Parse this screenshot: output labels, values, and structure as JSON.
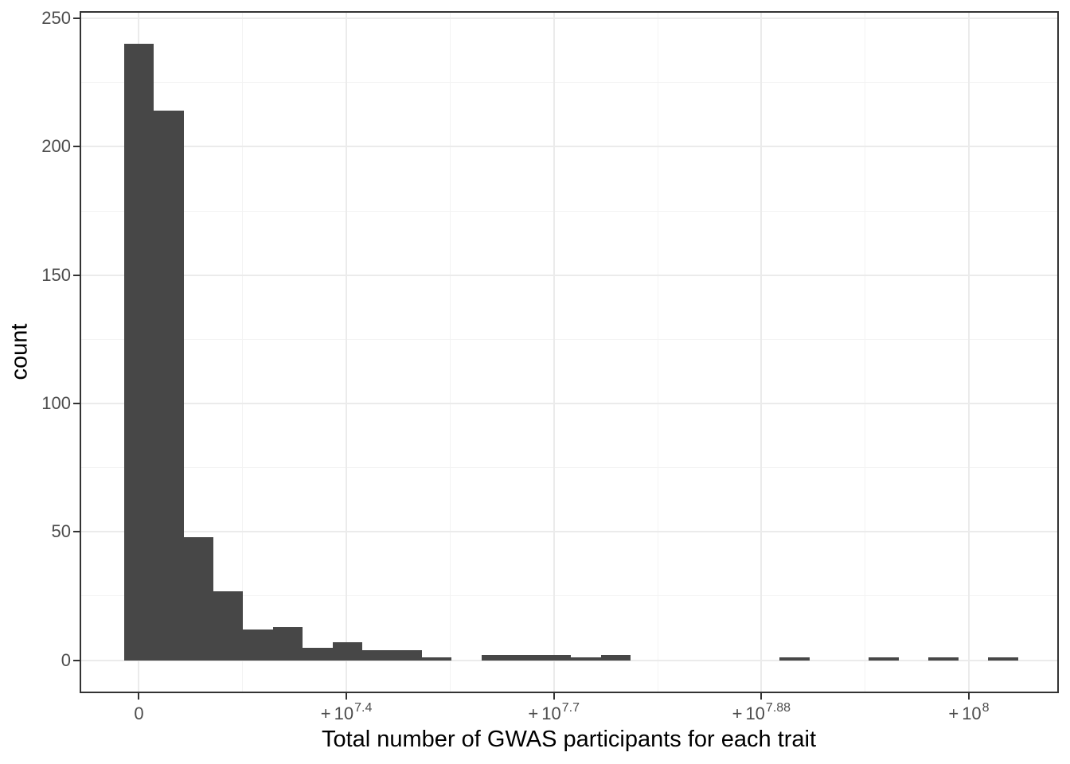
{
  "chart_data": {
    "type": "bar",
    "subtype": "histogram",
    "title": "",
    "xlabel": "Total number of GWAS participants for each trait",
    "ylabel": "count",
    "x_scale": "linear in participants; tick labels shown as powers of 10",
    "bin_width_participants": 3590000,
    "first_bin_center_participants": 0,
    "counts": [
      240,
      214,
      48,
      27,
      12,
      13,
      5,
      7,
      4,
      4,
      1,
      0,
      2,
      2,
      2,
      1,
      2,
      0,
      0,
      0,
      0,
      0,
      1,
      0,
      0,
      1,
      0,
      1,
      0,
      1
    ],
    "x_ticks": [
      {
        "participants": 0,
        "label": "0",
        "prefix": "",
        "base": "0",
        "exponent": ""
      },
      {
        "participants": 25000000,
        "label": "+10^7.4",
        "prefix": "+",
        "base": "10",
        "exponent": "7.4"
      },
      {
        "participants": 50000000,
        "label": "+10^7.7",
        "prefix": "+",
        "base": "10",
        "exponent": "7.7"
      },
      {
        "participants": 75000000,
        "label": "+10^7.88",
        "prefix": "+",
        "base": "10",
        "exponent": "7.88"
      },
      {
        "participants": 100000000,
        "label": "+10^8",
        "prefix": "+",
        "base": "10",
        "exponent": "8"
      }
    ],
    "x_minor_ticks_participants": [
      12500000,
      37500000,
      62500000,
      87500000
    ],
    "y_ticks": [
      0,
      50,
      100,
      150,
      200,
      250
    ],
    "y_minor_ticks": [
      25,
      75,
      125,
      175,
      225
    ],
    "xlim_participants": [
      -7000000,
      110700000
    ],
    "ylim": [
      -12.2,
      252.5
    ],
    "grid": true,
    "legend": "none",
    "colors": {
      "bar_fill": "#474747",
      "grid_major": "#ebebeb",
      "grid_minor": "#f3f3f3",
      "panel_border": "#333333",
      "tick_mark": "#333333",
      "tick_label": "#4d4d4d",
      "axis_title": "#000000",
      "background": "#ffffff"
    }
  }
}
